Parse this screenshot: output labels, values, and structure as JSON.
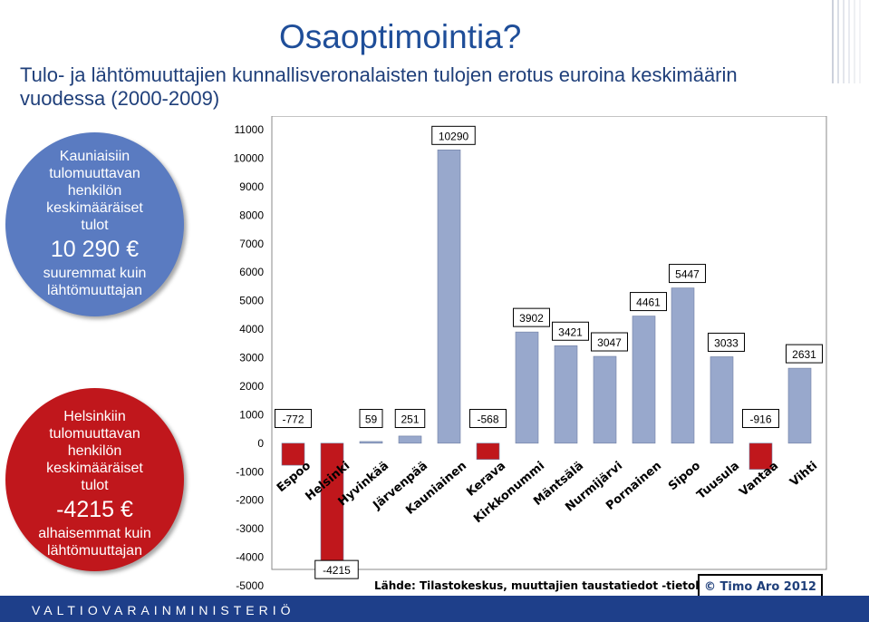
{
  "header": {
    "title": "Osaoptimointia?",
    "subtitle": "Tulo- ja lähtömuuttajien kunnallisveronalaisten tulojen erotus euroina keskimäärin vuodessa (2000-2009)"
  },
  "callout_top": {
    "line1": "Kauniaisiin",
    "line2": "tulomuuttavan",
    "line3": "henkilön",
    "line4": "keskimääräiset",
    "line5": "tulot",
    "amount": "10 290 €",
    "line6": "suuremmat kuin",
    "line7": "lähtömuuttajan",
    "color": "#5a7bc1"
  },
  "callout_bottom": {
    "line1": "Helsinkiin",
    "line2": "tulomuuttavan",
    "line3": "henkilön",
    "line4": "keskimääräiset",
    "line5": "tulot",
    "amount": "-4215 €",
    "line6": "alhaisemmat kuin",
    "line7": "lähtömuuttajan",
    "color": "#c0171c"
  },
  "footer": {
    "source": "Lähde: Tilastokeskus, muuttajien taustatiedot -tietokanta",
    "copyright": "© Timo Aro 2012",
    "ministry": "VALTIOVARAINMINISTERIÖ"
  },
  "chart_data": {
    "type": "bar",
    "categories": [
      "Espoo",
      "Helsinki",
      "Hyvinkää",
      "Järvenpää",
      "Kauniainen",
      "Kerava",
      "Kirkkonummi",
      "Mäntsälä",
      "Nurmijärvi",
      "Pornainen",
      "Sipoo",
      "Tuusula",
      "Vantaa",
      "Vihti"
    ],
    "values": [
      -772,
      -4215,
      59,
      251,
      10290,
      -568,
      3902,
      3421,
      3047,
      4461,
      5447,
      3033,
      -916,
      2631
    ],
    "ylim": [
      -5000,
      11000
    ],
    "yticks": [
      11000,
      10000,
      9000,
      8000,
      7000,
      6000,
      5000,
      4000,
      3000,
      2000,
      1000,
      0,
      -1000,
      -2000,
      -3000,
      -4000,
      -5000
    ],
    "positive_color": "#98a8cc",
    "negative_color": "#c0171c",
    "grid": false
  }
}
